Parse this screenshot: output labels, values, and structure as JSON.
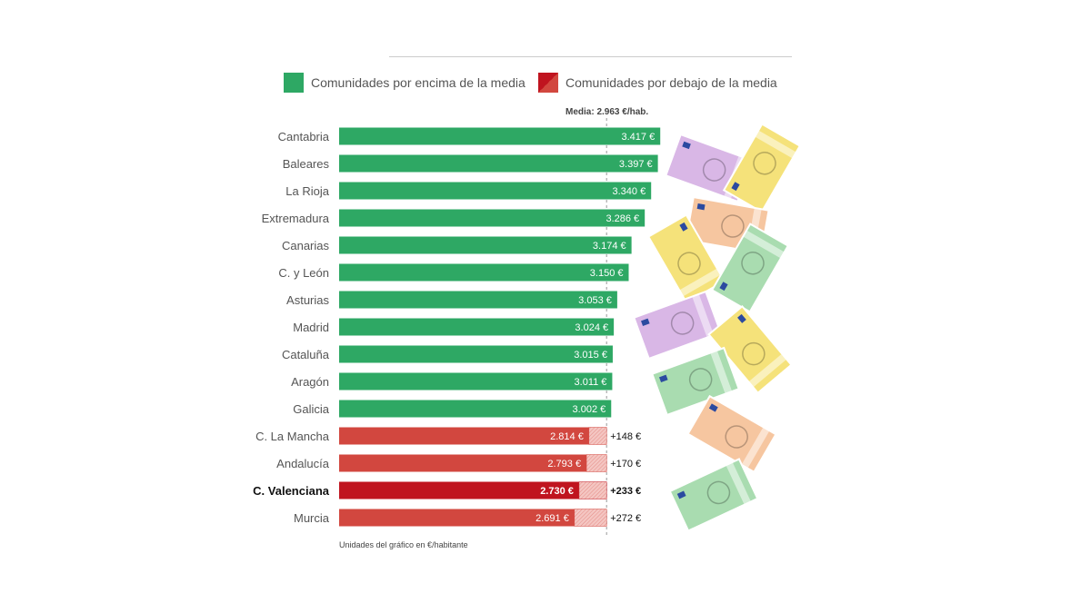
{
  "chart_data": {
    "type": "bar",
    "orientation": "horizontal",
    "categories": [
      "Cantabria",
      "Baleares",
      "La Rioja",
      "Extremadura",
      "Canarias",
      "C. y León",
      "Asturias",
      "Madrid",
      "Cataluña",
      "Aragón",
      "Galicia",
      "C. La Mancha",
      "Andalucía",
      "C. Valenciana",
      "Murcia"
    ],
    "values": [
      3417,
      3397,
      3340,
      3286,
      3174,
      3150,
      3053,
      3024,
      3015,
      3011,
      3002,
      2814,
      2793,
      2730,
      2691
    ],
    "value_labels": [
      "3.417 €",
      "3.397 €",
      "3.340 €",
      "3.286 €",
      "3.174 €",
      "3.150 €",
      "3.053 €",
      "3.024 €",
      "3.015 €",
      "3.011 €",
      "3.002 €",
      "2.814 €",
      "2.793 €",
      "2.730 €",
      "2.691 €"
    ],
    "gap_labels": [
      "",
      "",
      "",
      "",
      "",
      "",
      "",
      "",
      "",
      "",
      "",
      "+148 €",
      "+170 €",
      "+233 €",
      "+272 €"
    ],
    "highlighted": "C. Valenciana",
    "mean": 2963,
    "mean_label": "Media: 2.963 €/hab.",
    "xlim": [
      700,
      3500
    ],
    "grid": false,
    "legend_position": "top",
    "legend": [
      {
        "label": "Comunidades por encima de la media",
        "color": "#2ea864"
      },
      {
        "label": "Comunidades por debajo de la media",
        "color": "#d2473f"
      }
    ],
    "colors": {
      "above": "#2ea864",
      "below": "#d2473f",
      "highlight": "#c0141f",
      "gap_hatch": "#f2b9b4"
    },
    "note": "Unidades del gráfico en €/habitante"
  }
}
